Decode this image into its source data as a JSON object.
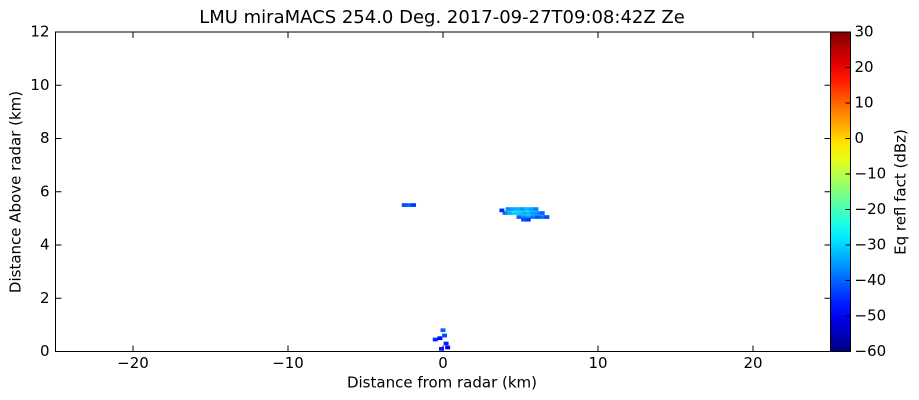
{
  "chart_data": {
    "type": "heatmap",
    "title": "LMU miraMACS 254.0 Deg. 2017-09-27T09:08:42Z  Ze",
    "xlabel": "Distance from radar (km)",
    "ylabel": "Distance Above radar  (km)",
    "colorbar_label": "Eq refl fact (dBz)",
    "colormap": "jet",
    "xlim": [
      -25,
      25
    ],
    "xticks": [
      {
        "value": -20,
        "label": "−20"
      },
      {
        "value": -10,
        "label": "−10"
      },
      0,
      10,
      20
    ],
    "ylim": [
      0,
      12
    ],
    "yticks": [
      0,
      2,
      4,
      6,
      8,
      10,
      12
    ],
    "clim": [
      -60,
      30
    ],
    "cticks": [
      {
        "value": -60,
        "label": "−60"
      },
      {
        "value": -50,
        "label": "−50"
      },
      {
        "value": -40,
        "label": "−40"
      },
      {
        "value": -30,
        "label": "−30"
      },
      {
        "value": -20,
        "label": "−20"
      },
      {
        "value": -10,
        "label": "−10"
      },
      0,
      10,
      20,
      30
    ],
    "points": {
      "x": [
        4.2,
        4.5,
        4.8,
        5.1,
        5.4,
        5.7,
        6.0,
        4.0,
        4.3,
        4.6,
        4.9,
        5.2,
        5.5,
        5.8,
        6.1,
        6.4,
        4.9,
        5.2,
        5.5,
        5.8,
        6.1,
        6.4,
        6.7,
        5.2,
        5.5,
        3.8,
        -2.5,
        -2.2,
        -1.9,
        -0.5,
        -0.2,
        0.1,
        0.2,
        0.3,
        -0.1,
        0.0
      ],
      "y": [
        5.35,
        5.35,
        5.35,
        5.35,
        5.35,
        5.35,
        5.35,
        5.2,
        5.2,
        5.2,
        5.2,
        5.2,
        5.2,
        5.2,
        5.2,
        5.2,
        5.05,
        5.05,
        5.05,
        5.05,
        5.05,
        5.05,
        5.05,
        4.95,
        4.95,
        5.3,
        5.5,
        5.5,
        5.5,
        0.45,
        0.5,
        0.6,
        0.3,
        0.15,
        0.1,
        0.8
      ],
      "values": [
        -36,
        -34,
        -33,
        -35,
        -32,
        -34,
        -37,
        -38,
        -33,
        -30,
        -31,
        -33,
        -32,
        -35,
        -36,
        -40,
        -40,
        -36,
        -34,
        -38,
        -41,
        -39,
        -42,
        -42,
        -44,
        -45,
        -42,
        -40,
        -44,
        -45,
        -48,
        -42,
        -46,
        -50,
        -47,
        -40
      ]
    }
  }
}
